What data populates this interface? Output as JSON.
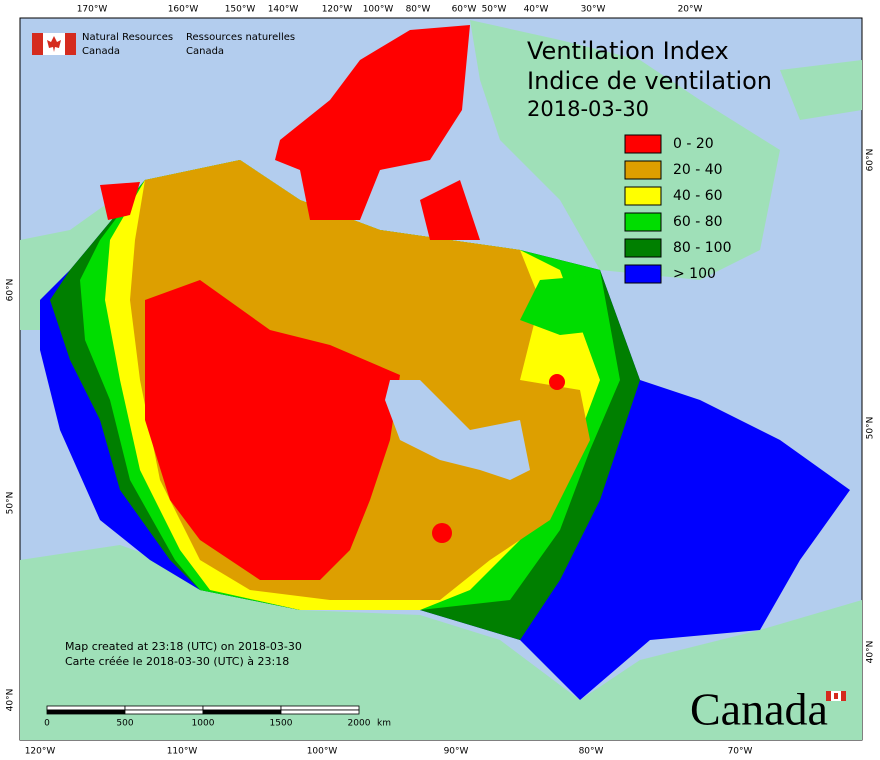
{
  "agency": {
    "english": [
      "Natural Resources",
      "Canada"
    ],
    "french": [
      "Ressources naturelles",
      "Canada"
    ]
  },
  "title": {
    "lines": [
      "Ventilation Index",
      "Indice de ventilation",
      "2018-03-30"
    ]
  },
  "legend": [
    {
      "label": "0 - 20",
      "color": "#ff0000"
    },
    {
      "label": "20 - 40",
      "color": "#dd9f00"
    },
    {
      "label": "40 - 60",
      "color": "#ffff00"
    },
    {
      "label": "60 - 80",
      "color": "#00dd00"
    },
    {
      "label": "80 - 100",
      "color": "#007f00"
    },
    {
      "label": "> 100",
      "color": "#0000ff"
    }
  ],
  "graticule": {
    "top": [
      "170°W",
      "160°W",
      "150°W",
      "140°W",
      "120°W",
      "100°W",
      "80°W",
      "60°W",
      "50°W",
      "40°W",
      "30°W",
      "20°W"
    ],
    "bottom": [
      "120°W",
      "110°W",
      "100°W",
      "90°W",
      "80°W",
      "70°W"
    ],
    "left": [
      "60°N",
      "50°N",
      "40°N"
    ],
    "right": [
      "60°N",
      "50°N",
      "40°N"
    ]
  },
  "notes": [
    "Map created at 23:18 (UTC) on 2018-03-30",
    "Carte créée le 2018-03-30 (UTC) à 23:18"
  ],
  "scale_bar": {
    "ticks": [
      "0",
      "500",
      "1000",
      "1500",
      "2000"
    ],
    "unit": "km"
  },
  "wordmark": "Canada"
}
